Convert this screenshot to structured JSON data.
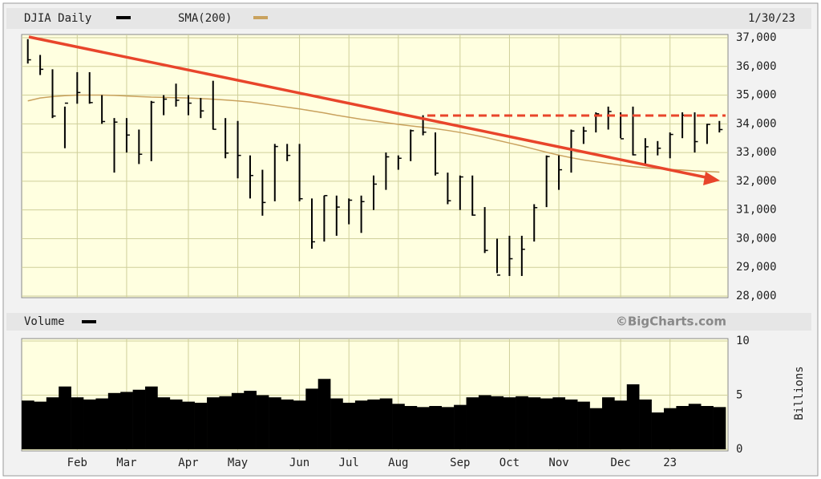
{
  "chart_data": {
    "type": "stock",
    "date": "1/30/23",
    "source": "©BigCharts.com",
    "categories": [
      null,
      null,
      null,
      null,
      "Feb",
      null,
      null,
      null,
      "Mar",
      null,
      null,
      null,
      null,
      "Apr",
      null,
      null,
      null,
      "May",
      null,
      null,
      null,
      null,
      "Jun",
      null,
      null,
      null,
      "Jul",
      null,
      null,
      null,
      "Aug",
      null,
      null,
      null,
      null,
      "Sep",
      null,
      null,
      null,
      "Oct",
      null,
      null,
      null,
      "Nov",
      null,
      null,
      null,
      null,
      "Dec",
      null,
      null,
      null,
      "23",
      null,
      null,
      null,
      null
    ],
    "series": [
      {
        "name": "DJIA Daily",
        "color": "#000000",
        "high": [
          36950,
          36400,
          35900,
          34600,
          35800,
          35800,
          35000,
          34200,
          34200,
          33800,
          34800,
          35000,
          35400,
          35000,
          34900,
          35500,
          34200,
          34100,
          32900,
          32400,
          33300,
          33300,
          33300,
          31400,
          31500,
          31500,
          31400,
          31500,
          32200,
          33000,
          32900,
          33800,
          34300,
          33700,
          32300,
          32200,
          32200,
          31100,
          30000,
          30100,
          30100,
          31200,
          32900,
          32900,
          33800,
          33900,
          34400,
          34600,
          34400,
          34600,
          33500,
          33400,
          33700,
          34400,
          34400,
          34000,
          34100
        ],
        "low": [
          36100,
          35700,
          34200,
          33150,
          34700,
          34700,
          34000,
          32300,
          33000,
          32600,
          32700,
          34300,
          34600,
          34300,
          34200,
          33800,
          32800,
          32100,
          31400,
          30800,
          31300,
          32700,
          31300,
          29650,
          29900,
          30100,
          30500,
          30200,
          31000,
          31700,
          32400,
          32700,
          33600,
          32200,
          31200,
          31000,
          30800,
          29500,
          28800,
          28700,
          28700,
          29900,
          31100,
          31700,
          32300,
          33300,
          33700,
          33800,
          33500,
          32900,
          32600,
          32900,
          32800,
          33500,
          33000,
          33300,
          33700
        ],
        "close": [
          36230,
          35900,
          34270,
          34720,
          35090,
          34740,
          34080,
          34060,
          33610,
          32940,
          34750,
          34860,
          34820,
          34720,
          34450,
          33810,
          32980,
          32900,
          32200,
          31260,
          33210,
          32900,
          31390,
          29890,
          31500,
          31100,
          31340,
          31290,
          31900,
          32850,
          32800,
          33760,
          33710,
          32280,
          31320,
          32150,
          30820,
          29590,
          28730,
          29300,
          29630,
          31080,
          32860,
          32400,
          33750,
          33750,
          34350,
          34430,
          33480,
          32920,
          33200,
          33150,
          33630,
          34300,
          33380,
          33980,
          33800
        ]
      },
      {
        "name": "SMA(200)",
        "color": "#c9a25e",
        "values": [
          34800,
          34900,
          34950,
          34980,
          35000,
          35000,
          35000,
          34990,
          34970,
          34950,
          34930,
          34920,
          34910,
          34900,
          34880,
          34860,
          34830,
          34800,
          34760,
          34700,
          34640,
          34580,
          34520,
          34450,
          34380,
          34300,
          34230,
          34160,
          34100,
          34040,
          33980,
          33930,
          33880,
          33830,
          33770,
          33700,
          33620,
          33530,
          33430,
          33330,
          33230,
          33120,
          33010,
          32910,
          32820,
          32740,
          32680,
          32620,
          32560,
          32510,
          32470,
          32440,
          32410,
          32390,
          32360,
          32340,
          32320
        ]
      }
    ],
    "ylim": [
      28000,
      37000
    ],
    "yticks": [
      {
        "value": 28000,
        "label": "28,000"
      },
      {
        "value": 29000,
        "label": "29,000"
      },
      {
        "value": 30000,
        "label": "30,000"
      },
      {
        "value": 31000,
        "label": "31,000"
      },
      {
        "value": 32000,
        "label": "32,000"
      },
      {
        "value": 33000,
        "label": "33,000"
      },
      {
        "value": 34000,
        "label": "34,000"
      },
      {
        "value": 35000,
        "label": "35,000"
      },
      {
        "value": 36000,
        "label": "36,000"
      },
      {
        "value": 37000,
        "label": "37,000"
      }
    ],
    "grid": true,
    "volume": {
      "title": "Volume",
      "color": "#000000",
      "axis_label": "Billions",
      "values": [
        4.5,
        4.4,
        4.8,
        5.8,
        4.8,
        4.6,
        4.7,
        5.2,
        5.3,
        5.5,
        5.8,
        4.8,
        4.6,
        4.4,
        4.3,
        4.8,
        4.9,
        5.2,
        5.4,
        5.0,
        4.8,
        4.6,
        4.5,
        5.6,
        6.5,
        4.7,
        4.3,
        4.5,
        4.6,
        4.7,
        4.2,
        4.0,
        3.9,
        4.0,
        3.9,
        4.1,
        4.8,
        5.0,
        4.9,
        4.8,
        4.9,
        4.8,
        4.7,
        4.8,
        4.6,
        4.4,
        3.8,
        4.8,
        4.5,
        6.0,
        4.6,
        3.4,
        3.8,
        4.0,
        4.2,
        4.0,
        3.9
      ],
      "ylim": [
        0,
        10
      ],
      "yticks": [
        0,
        5,
        10
      ]
    }
  }
}
